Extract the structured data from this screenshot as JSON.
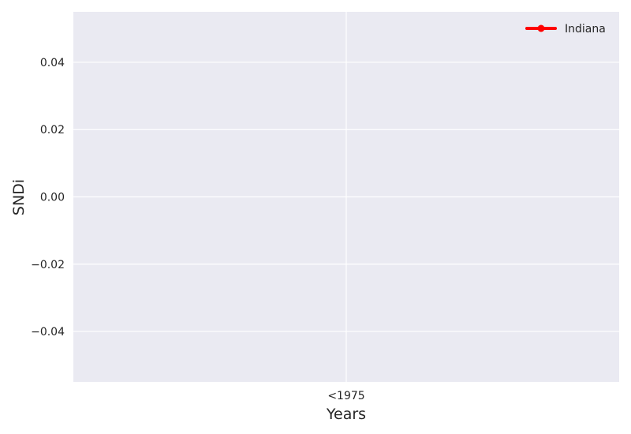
{
  "chart_data": {
    "type": "line",
    "title": "",
    "xlabel": "Years",
    "ylabel": "SNDi",
    "categories": [
      "<1975"
    ],
    "series": [
      {
        "name": "Indiana",
        "values": [
          null
        ],
        "color": "#ff0000"
      }
    ],
    "ylim": [
      -0.055,
      0.055
    ],
    "yticks": [
      -0.04,
      -0.02,
      0.0,
      0.02,
      0.04
    ],
    "ytick_labels": [
      "−0.04",
      "−0.02",
      "0.00",
      "0.02",
      "0.04"
    ],
    "grid": true,
    "legend_position": "top-right",
    "background_color": "#eaeaf2",
    "grid_color": "#ffffff"
  }
}
